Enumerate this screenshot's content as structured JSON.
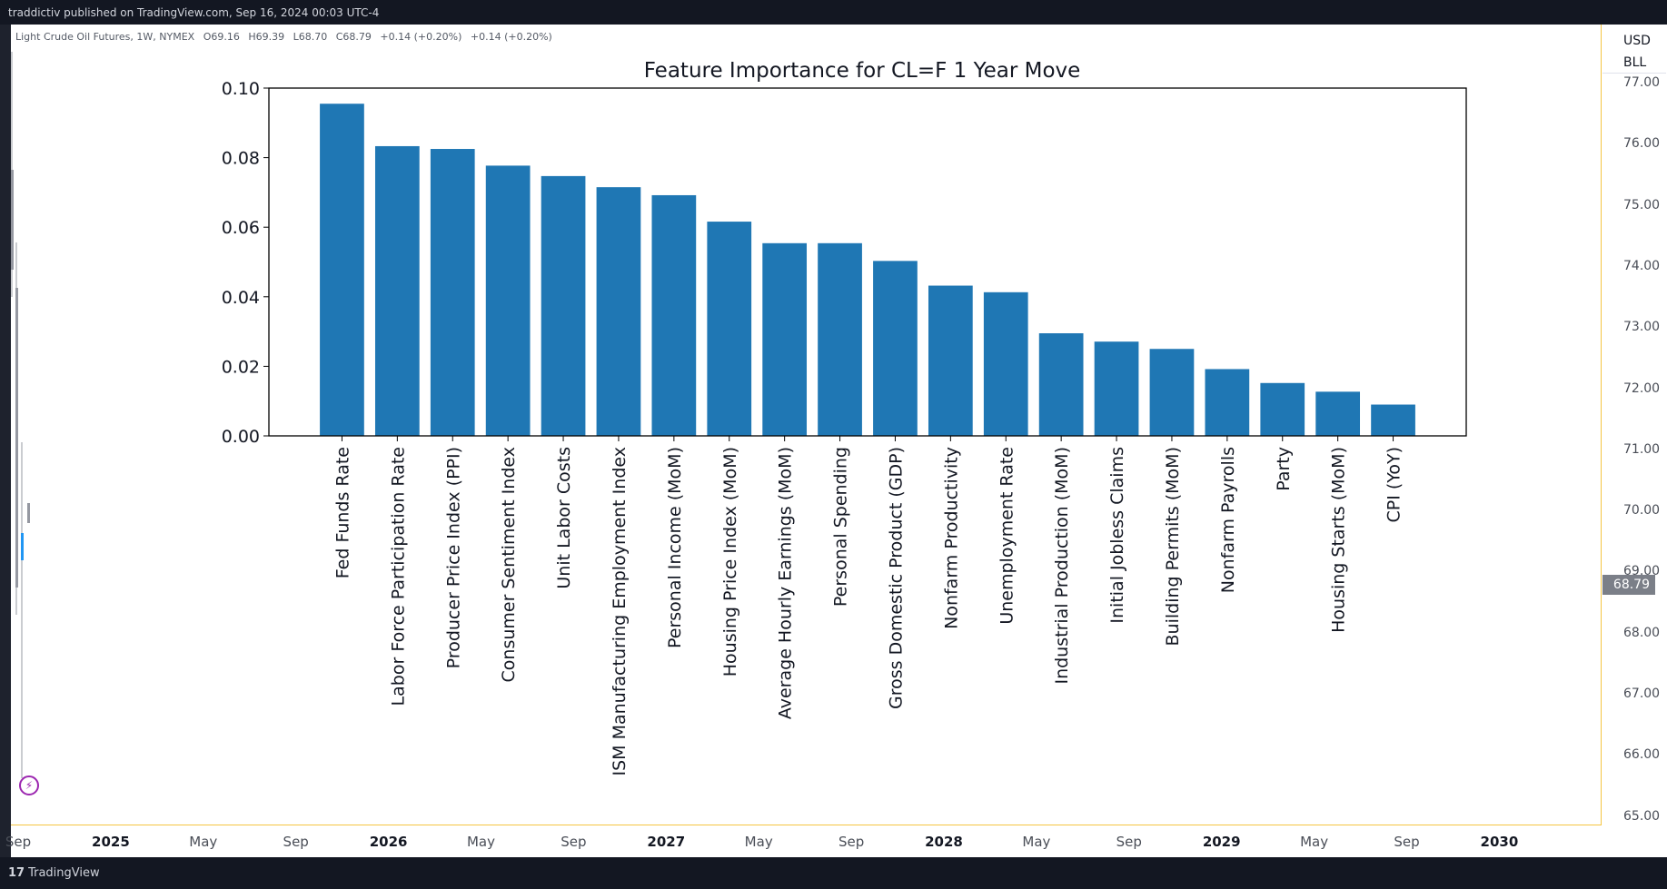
{
  "header": {
    "published_line": "traddictiv published on TradingView.com, Sep 16, 2024 00:03 UTC-4"
  },
  "symbol": {
    "name": "Light Crude Oil Futures, 1W, NYMEX",
    "open": "O69.16",
    "high": "H69.39",
    "low": "L68.70",
    "close": "C68.79",
    "change1": "+0.14 (+0.20%)",
    "change2": "+0.14 (+0.20%)"
  },
  "price_axis": {
    "unit": "USD",
    "unit2": "BLL",
    "ticks": [
      "77.00",
      "76.00",
      "75.00",
      "74.00",
      "73.00",
      "72.00",
      "71.00",
      "70.00",
      "69.00",
      "68.00",
      "67.00",
      "66.00",
      "65.00"
    ],
    "last_price": "68.79"
  },
  "time_axis": {
    "ticks": [
      {
        "label": "Sep",
        "bold": false
      },
      {
        "label": "2025",
        "bold": true
      },
      {
        "label": "May",
        "bold": false
      },
      {
        "label": "Sep",
        "bold": false
      },
      {
        "label": "2026",
        "bold": true
      },
      {
        "label": "May",
        "bold": false
      },
      {
        "label": "Sep",
        "bold": false
      },
      {
        "label": "2027",
        "bold": true
      },
      {
        "label": "May",
        "bold": false
      },
      {
        "label": "Sep",
        "bold": false
      },
      {
        "label": "2028",
        "bold": true
      },
      {
        "label": "May",
        "bold": false
      },
      {
        "label": "Sep",
        "bold": false
      },
      {
        "label": "2029",
        "bold": true
      },
      {
        "label": "May",
        "bold": false
      },
      {
        "label": "Sep",
        "bold": false
      },
      {
        "label": "2030",
        "bold": true
      }
    ]
  },
  "footer": {
    "logo_text": "TradingView",
    "logo_mark": "17"
  },
  "icons": {
    "flash": "flash-icon",
    "logo": "tradingview-logo-icon"
  },
  "chart_data": {
    "type": "bar",
    "title": "Feature Importance for CL=F 1 Year Move",
    "xlabel": "",
    "ylabel": "",
    "ylim": [
      0,
      0.1
    ],
    "yticks": [
      "0.00",
      "0.02",
      "0.04",
      "0.06",
      "0.08",
      "0.10"
    ],
    "bar_color": "#1f77b4",
    "categories": [
      "Fed Funds Rate",
      "Labor Force Participation Rate",
      "Producer Price Index (PPI)",
      "Consumer Sentiment Index",
      "Unit Labor Costs",
      "ISM Manufacturing Employment Index",
      "Personal Income (MoM)",
      "Housing Price Index (MoM)",
      "Average Hourly Earnings (MoM)",
      "Personal Spending",
      "Gross Domestic Product (GDP)",
      "Nonfarm Productivity",
      "Unemployment Rate",
      "Industrial Production (MoM)",
      "Initial Jobless Claims",
      "Building Permits (MoM)",
      "Nonfarm Payrolls",
      "Party",
      "Housing Starts (MoM)",
      "CPI (YoY)"
    ],
    "values": [
      0.0955,
      0.0833,
      0.0825,
      0.0777,
      0.0747,
      0.0715,
      0.0692,
      0.0616,
      0.0554,
      0.0554,
      0.0503,
      0.0432,
      0.0413,
      0.0295,
      0.0271,
      0.025,
      0.0192,
      0.0152,
      0.0127,
      0.009
    ]
  }
}
